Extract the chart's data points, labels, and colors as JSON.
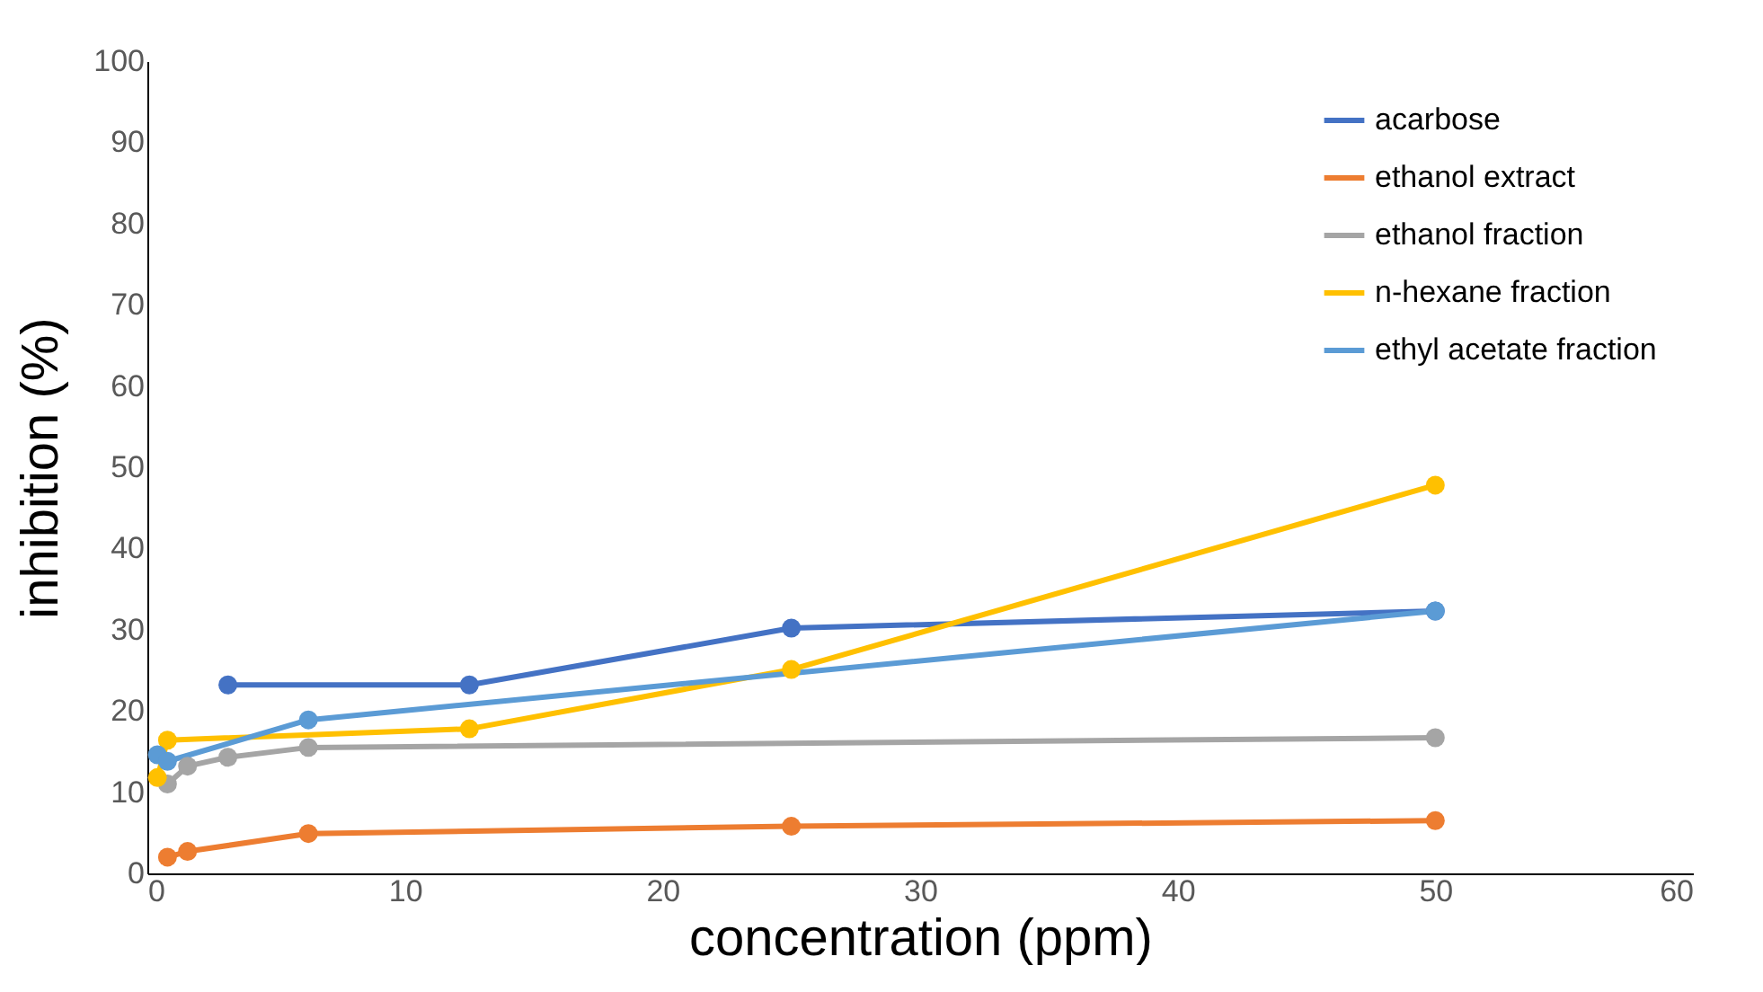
{
  "chart_data": {
    "type": "line",
    "xlabel": "concentration (ppm)",
    "ylabel": "inhibition (%)",
    "xlim": [
      0,
      60
    ],
    "xticks": [
      0,
      10,
      20,
      30,
      40,
      50,
      60
    ],
    "ylim": [
      0,
      100
    ],
    "yticks": [
      0,
      10,
      20,
      30,
      40,
      50,
      60,
      70,
      80,
      90,
      100
    ],
    "grid": false,
    "legend": "top right",
    "marker": "circle",
    "line_style": "solid",
    "series": [
      {
        "name": "acarbose",
        "color": "#4472c4",
        "x": [
          3.125,
          12.5,
          25,
          50
        ],
        "values": [
          23.2,
          23.2,
          30.2,
          32.3
        ]
      },
      {
        "name": "ethanol extract",
        "color": "#ed7d31",
        "x": [
          0.78,
          1.56,
          6.25,
          25,
          50
        ],
        "values": [
          2.0,
          2.7,
          4.9,
          5.8,
          6.5
        ]
      },
      {
        "name": "ethanol fraction",
        "color": "#a5a5a5",
        "x": [
          0.78,
          1.56,
          3.125,
          6.25,
          50
        ],
        "values": [
          11.0,
          13.2,
          14.3,
          15.5,
          16.7
        ]
      },
      {
        "name": "n-hexane fraction",
        "color": "#ffc000",
        "x": [
          0.39,
          0.78,
          12.5,
          25,
          50
        ],
        "values": [
          11.8,
          16.4,
          17.8,
          25.1,
          47.8
        ]
      },
      {
        "name": "ethyl acetate fraction",
        "color": "#5b9bd5",
        "x": [
          0.39,
          0.78,
          6.25,
          50
        ],
        "values": [
          14.6,
          13.8,
          18.9,
          32.3
        ]
      }
    ]
  }
}
